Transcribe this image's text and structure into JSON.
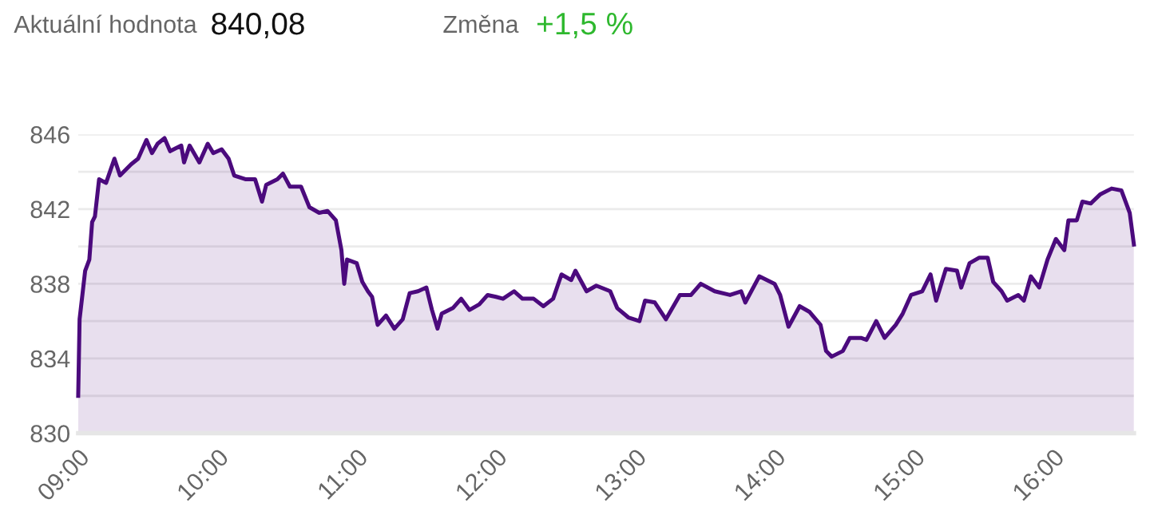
{
  "chart_data": {
    "type": "area",
    "annotations": [
      "Aktuální hodnota",
      "840,08",
      "Změna",
      "+1,5 %"
    ],
    "x": [
      9.0,
      9.01,
      9.05,
      9.08,
      9.1,
      9.12,
      9.15,
      9.2,
      9.26,
      9.3,
      9.38,
      9.43,
      9.49,
      9.53,
      9.57,
      9.62,
      9.66,
      9.74,
      9.76,
      9.8,
      9.87,
      9.93,
      9.97,
      10.03,
      10.08,
      10.12,
      10.2,
      10.27,
      10.32,
      10.35,
      10.43,
      10.47,
      10.52,
      10.6,
      10.66,
      10.73,
      10.79,
      10.85,
      10.89,
      10.91,
      10.93,
      11.0,
      11.04,
      11.08,
      11.11,
      11.15,
      11.21,
      11.27,
      11.33,
      11.38,
      11.44,
      11.5,
      11.54,
      11.58,
      11.61,
      11.69,
      11.75,
      11.81,
      11.88,
      11.94,
      12.0,
      12.05,
      12.13,
      12.19,
      12.27,
      12.34,
      12.41,
      12.47,
      12.54,
      12.57,
      12.65,
      12.72,
      12.82,
      12.87,
      12.95,
      13.03,
      13.07,
      13.14,
      13.22,
      13.32,
      13.4,
      13.47,
      13.57,
      13.68,
      13.76,
      13.79,
      13.89,
      14.0,
      14.04,
      14.1,
      14.18,
      14.25,
      14.33,
      14.37,
      14.41,
      14.49,
      14.54,
      14.62,
      14.66,
      14.73,
      14.79,
      14.87,
      14.92,
      14.98,
      15.06,
      15.12,
      15.16,
      15.23,
      15.31,
      15.34,
      15.4,
      15.47,
      15.53,
      15.57,
      15.63,
      15.67,
      15.75,
      15.79,
      15.84,
      15.9,
      15.96,
      16.02,
      16.08,
      16.11,
      16.17,
      16.21,
      16.27,
      16.34,
      16.42,
      16.49,
      16.55,
      16.58
    ],
    "series": [
      {
        "color": "#4b0a7d",
        "values": [
          832.0,
          836.1,
          838.7,
          839.3,
          841.3,
          841.6,
          843.6,
          843.4,
          844.7,
          843.8,
          844.4,
          844.7,
          845.7,
          845.0,
          845.5,
          845.8,
          845.1,
          845.4,
          844.5,
          845.4,
          844.5,
          845.5,
          845.0,
          845.2,
          844.7,
          843.8,
          843.6,
          843.6,
          842.4,
          843.3,
          843.6,
          843.9,
          843.2,
          843.2,
          842.1,
          841.8,
          841.9,
          841.4,
          839.8,
          838.0,
          839.3,
          839.1,
          838.1,
          837.6,
          837.3,
          835.8,
          836.3,
          835.6,
          836.1,
          837.5,
          837.6,
          837.8,
          836.6,
          835.6,
          836.4,
          836.7,
          837.2,
          836.6,
          836.9,
          837.4,
          837.3,
          837.2,
          837.6,
          837.2,
          837.2,
          836.8,
          837.2,
          838.5,
          838.2,
          838.7,
          837.6,
          837.9,
          837.6,
          836.7,
          836.2,
          836.0,
          837.1,
          837.0,
          836.1,
          837.4,
          837.4,
          838.0,
          837.6,
          837.4,
          837.6,
          837.0,
          838.4,
          838.0,
          837.4,
          835.7,
          836.8,
          836.5,
          835.8,
          834.4,
          834.1,
          834.4,
          835.1,
          835.1,
          835.0,
          836.0,
          835.1,
          835.8,
          836.4,
          837.4,
          837.6,
          838.5,
          837.1,
          838.8,
          838.7,
          837.8,
          839.1,
          839.4,
          839.4,
          838.1,
          837.6,
          837.1,
          837.4,
          837.1,
          838.4,
          837.8,
          839.3,
          840.4,
          839.8,
          841.4,
          841.4,
          842.4,
          842.3,
          842.8,
          843.1,
          843.0,
          841.8,
          840.1
        ]
      }
    ],
    "xlim": [
      9,
      16.58
    ],
    "ylim": [
      830,
      846
    ],
    "xticks": [
      {
        "value": 9,
        "label": "09:00"
      },
      {
        "value": 10,
        "label": "10:00"
      },
      {
        "value": 11,
        "label": "11:00"
      },
      {
        "value": 12,
        "label": "12:00"
      },
      {
        "value": 13,
        "label": "13:00"
      },
      {
        "value": 14,
        "label": "14:00"
      },
      {
        "value": 15,
        "label": "15:00"
      },
      {
        "value": 16,
        "label": "16:00"
      }
    ],
    "yticks": [
      830,
      {
        "value": 832,
        "label": null
      },
      834,
      {
        "value": 836,
        "label": null
      },
      838,
      {
        "value": 840,
        "label": null
      },
      842,
      {
        "value": 844,
        "label": null
      },
      846
    ],
    "grid": "y",
    "legend": false,
    "marker": "none",
    "line_style": "solid"
  }
}
